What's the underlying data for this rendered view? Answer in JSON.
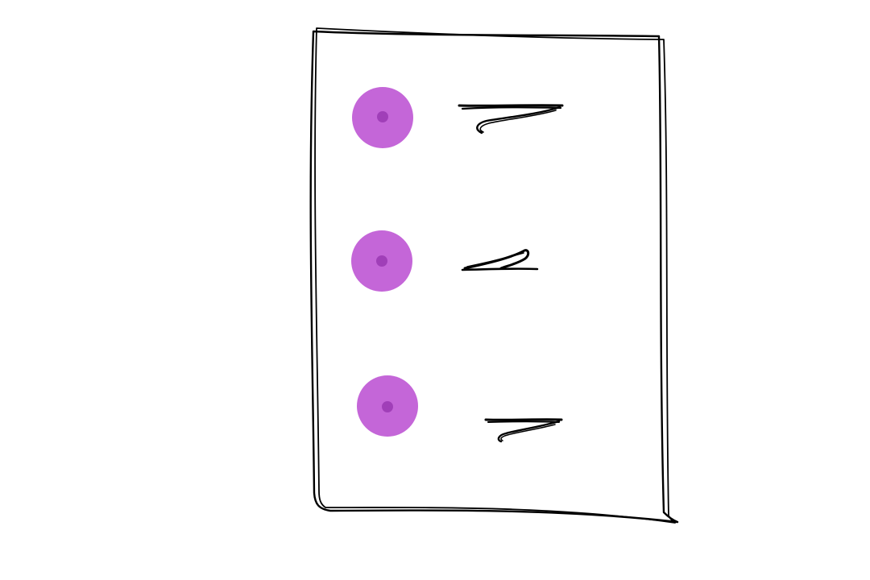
{
  "sketch": {
    "frame": {
      "stroke_color": "#000000",
      "shape": "hand-drawn rectangle"
    },
    "items": [
      {
        "bullet_icon": "radio-dot-icon",
        "bullet_color": "#c466d8",
        "center_color": "#a03fb8",
        "label": ""
      },
      {
        "bullet_icon": "radio-dot-icon",
        "bullet_color": "#c466d8",
        "center_color": "#a03fb8",
        "label": ""
      },
      {
        "bullet_icon": "radio-dot-icon",
        "bullet_color": "#c466d8",
        "center_color": "#a03fb8",
        "label": ""
      }
    ]
  }
}
